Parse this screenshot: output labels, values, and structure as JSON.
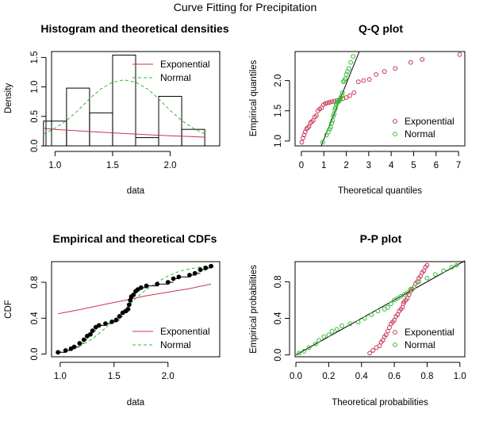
{
  "main_title": "Curve Fitting for Precipitation",
  "colors": {
    "exponential": "#cc3355",
    "normal": "#33bb33",
    "black": "#000000"
  },
  "chart_data": [
    {
      "type": "histogram",
      "title": "Histogram and theoretical densities",
      "xlabel": "data",
      "ylabel": "Density",
      "xlim": [
        0.97,
        2.43
      ],
      "ylim": [
        0,
        1.6
      ],
      "xticks": [
        1.0,
        1.5,
        2.0
      ],
      "xtick_labels": [
        "1.0",
        "1.5",
        "2.0"
      ],
      "yticks": [
        0.0,
        0.5,
        1.0,
        1.5
      ],
      "ytick_labels": [
        "0.0",
        "0.5",
        "1.0",
        "1.5"
      ],
      "bins": [
        {
          "x0": 0.9,
          "x1": 1.1,
          "density": 0.42
        },
        {
          "x0": 1.1,
          "x1": 1.3,
          "density": 0.98
        },
        {
          "x0": 1.3,
          "x1": 1.5,
          "density": 0.56
        },
        {
          "x0": 1.5,
          "x1": 1.7,
          "density": 1.54
        },
        {
          "x0": 1.7,
          "x1": 1.9,
          "density": 0.14
        },
        {
          "x0": 1.9,
          "x1": 2.1,
          "density": 0.84
        },
        {
          "x0": 2.1,
          "x1": 2.3,
          "density": 0.28
        }
      ],
      "density_curves": [
        {
          "name": "Exponential",
          "x": [
            0.9,
            1.0,
            1.2,
            1.4,
            1.6,
            1.8,
            2.0,
            2.2,
            2.3
          ],
          "y": [
            0.3,
            0.28,
            0.255,
            0.232,
            0.21,
            0.19,
            0.172,
            0.156,
            0.148
          ]
        },
        {
          "name": "Normal",
          "x": [
            0.9,
            1.0,
            1.1,
            1.2,
            1.3,
            1.4,
            1.5,
            1.6,
            1.7,
            1.8,
            1.9,
            2.0,
            2.1,
            2.2,
            2.3
          ],
          "y": [
            0.2,
            0.3,
            0.43,
            0.6,
            0.8,
            0.97,
            1.08,
            1.12,
            1.08,
            0.97,
            0.8,
            0.6,
            0.43,
            0.3,
            0.2
          ]
        }
      ],
      "legend": [
        "Exponential",
        "Normal"
      ]
    },
    {
      "type": "scatter",
      "title": "Q-Q plot",
      "xlabel": "Theoretical quantiles",
      "ylabel": "Empirical quantiles",
      "xlim": [
        -0.28,
        7.28
      ],
      "ylim": [
        0.92,
        2.48
      ],
      "xticks": [
        0,
        1,
        2,
        3,
        4,
        5,
        6,
        7
      ],
      "xtick_labels": [
        "0",
        "1",
        "2",
        "3",
        "4",
        "5",
        "6",
        "7"
      ],
      "yticks": [
        1.0,
        1.5,
        2.0
      ],
      "ytick_labels": [
        "1.0",
        "1.5",
        "2.0"
      ],
      "reference_line": [
        [
          0.88,
          0.92
        ],
        [
          2.58,
          2.48
        ]
      ],
      "series": [
        {
          "name": "Exponential",
          "x": [
            0.02,
            0.07,
            0.12,
            0.17,
            0.23,
            0.28,
            0.34,
            0.4,
            0.46,
            0.53,
            0.6,
            0.67,
            0.74,
            0.82,
            0.9,
            0.98,
            1.07,
            1.16,
            1.26,
            1.36,
            1.47,
            1.59,
            1.71,
            1.85,
            2.0,
            2.16,
            2.34,
            2.54,
            2.77,
            3.03,
            3.33,
            3.7,
            4.18,
            4.87,
            5.38,
            7.05
          ],
          "y": [
            0.98,
            1.05,
            1.1,
            1.15,
            1.2,
            1.22,
            1.24,
            1.3,
            1.32,
            1.34,
            1.4,
            1.42,
            1.5,
            1.53,
            1.55,
            1.6,
            1.62,
            1.63,
            1.64,
            1.65,
            1.66,
            1.67,
            1.68,
            1.7,
            1.72,
            1.75,
            1.8,
            1.98,
            2.0,
            2.02,
            2.1,
            2.15,
            2.2,
            2.3,
            2.35,
            2.43
          ]
        },
        {
          "name": "Normal",
          "x": [
            0.95,
            1.12,
            1.2,
            1.26,
            1.31,
            1.35,
            1.39,
            1.42,
            1.46,
            1.49,
            1.52,
            1.55,
            1.58,
            1.61,
            1.64,
            1.67,
            1.7,
            1.73,
            1.76,
            1.8,
            1.83,
            1.87,
            1.91,
            1.95,
            2.0,
            2.05,
            2.12,
            2.2,
            2.3
          ],
          "y": [
            0.98,
            1.1,
            1.15,
            1.2,
            1.23,
            1.3,
            1.34,
            1.41,
            1.45,
            1.52,
            1.55,
            1.6,
            1.63,
            1.64,
            1.65,
            1.66,
            1.68,
            1.7,
            1.72,
            1.75,
            1.8,
            1.98,
            2.0,
            2.03,
            2.1,
            2.15,
            2.2,
            2.3,
            2.4
          ]
        }
      ],
      "legend": [
        "Exponential",
        "Normal"
      ]
    },
    {
      "type": "line",
      "title": "Empirical and theoretical CDFs",
      "xlabel": "data",
      "ylabel": "CDF",
      "xlim": [
        0.92,
        2.48
      ],
      "ylim": [
        -0.03,
        1.03
      ],
      "xticks": [
        1.0,
        1.5,
        2.0
      ],
      "xtick_labels": [
        "1.0",
        "1.5",
        "2.0"
      ],
      "yticks": [
        0.0,
        0.4,
        0.8
      ],
      "ytick_labels": [
        "0.0",
        "0.4",
        "0.8"
      ],
      "empirical_points": {
        "x": [
          0.98,
          1.05,
          1.1,
          1.13,
          1.18,
          1.22,
          1.25,
          1.28,
          1.3,
          1.33,
          1.36,
          1.42,
          1.48,
          1.52,
          1.55,
          1.58,
          1.61,
          1.63,
          1.64,
          1.65,
          1.66,
          1.68,
          1.7,
          1.72,
          1.75,
          1.8,
          1.9,
          2.0,
          2.05,
          2.1,
          2.2,
          2.25,
          2.3,
          2.35,
          2.4
        ],
        "y": [
          0.02,
          0.04,
          0.06,
          0.08,
          0.12,
          0.16,
          0.2,
          0.22,
          0.26,
          0.3,
          0.32,
          0.34,
          0.36,
          0.38,
          0.42,
          0.46,
          0.48,
          0.5,
          0.55,
          0.6,
          0.64,
          0.66,
          0.7,
          0.72,
          0.74,
          0.76,
          0.78,
          0.8,
          0.84,
          0.86,
          0.88,
          0.9,
          0.94,
          0.96,
          0.98
        ]
      },
      "series": [
        {
          "name": "Exponential",
          "x": [
            0.98,
            1.2,
            1.4,
            1.6,
            1.8,
            2.0,
            2.2,
            2.4
          ],
          "y": [
            0.45,
            0.5,
            0.55,
            0.6,
            0.65,
            0.69,
            0.73,
            0.78
          ]
        },
        {
          "name": "Normal",
          "x": [
            0.98,
            1.1,
            1.2,
            1.3,
            1.4,
            1.5,
            1.6,
            1.7,
            1.8,
            1.9,
            2.0,
            2.1,
            2.2,
            2.3,
            2.4
          ],
          "y": [
            0.02,
            0.05,
            0.1,
            0.17,
            0.27,
            0.38,
            0.5,
            0.62,
            0.72,
            0.8,
            0.87,
            0.92,
            0.95,
            0.97,
            0.99
          ]
        }
      ],
      "legend": [
        "Exponential",
        "Normal"
      ]
    },
    {
      "type": "scatter",
      "title": "P-P plot",
      "xlabel": "Theoretical probabilities",
      "ylabel": "Empirical probabilities",
      "xlim": [
        -0.005,
        1.03
      ],
      "ylim": [
        -0.02,
        1.02
      ],
      "xticks": [
        0.0,
        0.2,
        0.4,
        0.6,
        0.8,
        1.0
      ],
      "xtick_labels": [
        "0.0",
        "0.2",
        "0.4",
        "0.6",
        "0.8",
        "1.0"
      ],
      "yticks": [
        0.0,
        0.4,
        0.8
      ],
      "ytick_labels": [
        "0.0",
        "0.4",
        "0.8"
      ],
      "reference_line": [
        [
          0,
          0
        ],
        [
          1.03,
          1.03
        ]
      ],
      "series": [
        {
          "name": "Exponential",
          "x": [
            0.45,
            0.47,
            0.49,
            0.51,
            0.52,
            0.53,
            0.54,
            0.55,
            0.56,
            0.57,
            0.58,
            0.59,
            0.6,
            0.61,
            0.62,
            0.63,
            0.64,
            0.65,
            0.655,
            0.66,
            0.67,
            0.68,
            0.69,
            0.7,
            0.71,
            0.72,
            0.73,
            0.74,
            0.75,
            0.76,
            0.77,
            0.78,
            0.79,
            0.8
          ],
          "y": [
            0.02,
            0.05,
            0.08,
            0.1,
            0.14,
            0.16,
            0.2,
            0.22,
            0.26,
            0.3,
            0.34,
            0.36,
            0.38,
            0.42,
            0.44,
            0.48,
            0.5,
            0.52,
            0.56,
            0.58,
            0.6,
            0.62,
            0.66,
            0.7,
            0.72,
            0.74,
            0.78,
            0.8,
            0.84,
            0.86,
            0.9,
            0.92,
            0.96,
            0.98
          ]
        },
        {
          "name": "Normal",
          "x": [
            0.02,
            0.05,
            0.08,
            0.12,
            0.14,
            0.17,
            0.2,
            0.22,
            0.25,
            0.28,
            0.33,
            0.38,
            0.42,
            0.46,
            0.5,
            0.54,
            0.56,
            0.58,
            0.6,
            0.62,
            0.64,
            0.66,
            0.68,
            0.7,
            0.72,
            0.75,
            0.8,
            0.85,
            0.9,
            0.95,
            0.98
          ],
          "y": [
            0.02,
            0.04,
            0.08,
            0.12,
            0.16,
            0.2,
            0.22,
            0.26,
            0.28,
            0.32,
            0.34,
            0.36,
            0.4,
            0.44,
            0.48,
            0.5,
            0.52,
            0.56,
            0.6,
            0.62,
            0.64,
            0.66,
            0.68,
            0.72,
            0.74,
            0.8,
            0.84,
            0.88,
            0.92,
            0.96,
            0.98
          ]
        }
      ],
      "legend": [
        "Exponential",
        "Normal"
      ]
    }
  ]
}
